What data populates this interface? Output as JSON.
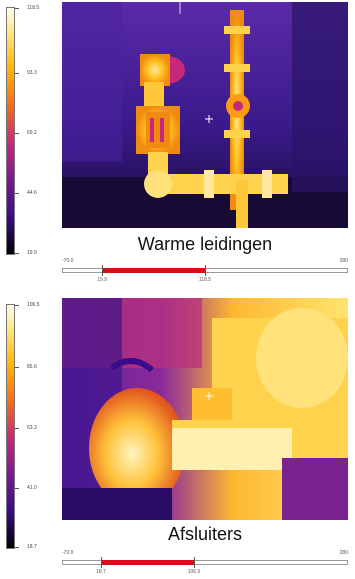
{
  "panels": [
    {
      "caption": "Warme leidingen",
      "scale": {
        "labels": [
          "118.5",
          "93.3",
          "69.2",
          "44.6",
          "19.9"
        ]
      },
      "range": {
        "min_label": "-70.0",
        "max_label": "280",
        "low_label": "19.9",
        "high_label": "118.5"
      }
    },
    {
      "caption": "Afsluiters",
      "scale": {
        "labels": [
          "106.5",
          "85.6",
          "63.3",
          "41.0",
          "18.7"
        ]
      },
      "range": {
        "min_label": "-70.0",
        "max_label": "280",
        "low_label": "18.7",
        "high_label": "106.5"
      }
    }
  ],
  "colors": {
    "palette_top": "#fffff0",
    "palette_mid_hot": "#ffb400",
    "palette_mid": "#c8287a",
    "palette_cool": "#3a0c8a",
    "palette_bottom": "#000000",
    "range_selection": "#d2101c"
  }
}
